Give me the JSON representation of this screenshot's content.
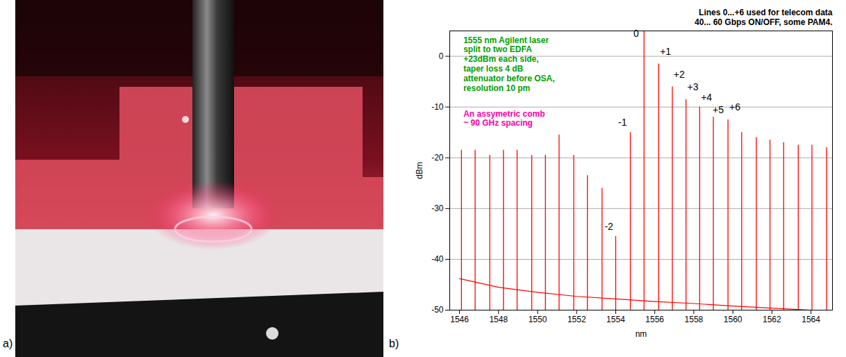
{
  "panel_labels": [
    "a)",
    "b)"
  ],
  "chart_data": {
    "type": "line",
    "xlabel": "nm",
    "ylabel": "dBm",
    "xlim": [
      1545.5,
      1565.1
    ],
    "xticks": [
      1546,
      1548,
      1550,
      1552,
      1554,
      1556,
      1558,
      1560,
      1562,
      1564
    ],
    "ylim": [
      -50,
      5
    ],
    "yticks": [
      -50,
      -40,
      -30,
      -20,
      -10,
      0
    ],
    "grid": true,
    "series": [
      {
        "type": "stem",
        "color": "#ff0000",
        "x": [
          1546.1,
          1546.8,
          1547.55,
          1548.25,
          1548.95,
          1549.7,
          1550.4,
          1551.1,
          1551.85,
          1552.55,
          1553.3,
          1554.0,
          1554.75,
          1555.45,
          1556.2,
          1556.9,
          1557.6,
          1558.3,
          1559.0,
          1559.75,
          1560.45,
          1561.2,
          1561.9,
          1562.6,
          1563.35,
          1564.05,
          1564.8
        ],
        "values": [
          -18.5,
          -18.5,
          -19.5,
          -18.5,
          -18.5,
          -19.5,
          -19.5,
          -15.5,
          -19.5,
          -23.5,
          -26,
          -35.5,
          -15,
          5,
          -1.5,
          -6,
          -8.5,
          -10,
          -12,
          -12.5,
          -15,
          -16,
          -16.5,
          -17,
          -17.5,
          -17.5,
          -18
        ]
      },
      {
        "type": "line",
        "color": "#ff0000",
        "x": [
          1546,
          1548,
          1550,
          1552,
          1554,
          1556,
          1558,
          1560,
          1562,
          1564,
          1565
        ],
        "values": [
          -43.8,
          -45.5,
          -46.5,
          -47.3,
          -47.8,
          -48.3,
          -48.7,
          -49.2,
          -49.6,
          -50,
          -50
        ]
      }
    ],
    "annotations": [
      {
        "text": "1555 nm Agilent laser\nsplit to two EDFA\n+23dBm each side,\ntaper loss 4 dB\nattenuator before OSA,\nresolution 10 pm",
        "x": 1546.2,
        "y": 4,
        "color": "#00a000"
      },
      {
        "text": "An assymetric comb\n~ 90 GHz spacing",
        "x": 1546.2,
        "y": -10.5,
        "color": "#ff00aa"
      },
      {
        "text": "Lines 0...+6 used for telecom data\n40... 60 Gbps ON/OFF, some PAM4.",
        "x": 1565.1,
        "y": 6.2,
        "color": "#000000"
      },
      {
        "text": "0",
        "x": 1555.05,
        "y": 4.5,
        "color": "#000000"
      },
      {
        "text": "+1",
        "x": 1556.55,
        "y": 1,
        "color": "#000000"
      },
      {
        "text": "+2",
        "x": 1557.25,
        "y": -3.5,
        "color": "#000000"
      },
      {
        "text": "+3",
        "x": 1557.95,
        "y": -6,
        "color": "#000000"
      },
      {
        "text": "+4",
        "x": 1558.65,
        "y": -8,
        "color": "#000000"
      },
      {
        "text": "+5",
        "x": 1559.25,
        "y": -10.5,
        "color": "#000000"
      },
      {
        "text": "+6",
        "x": 1560.1,
        "y": -10,
        "color": "#000000"
      },
      {
        "text": "-1",
        "x": 1554.35,
        "y": -13,
        "color": "#000000"
      },
      {
        "text": "-2",
        "x": 1553.65,
        "y": -33.5,
        "color": "#000000"
      }
    ]
  }
}
